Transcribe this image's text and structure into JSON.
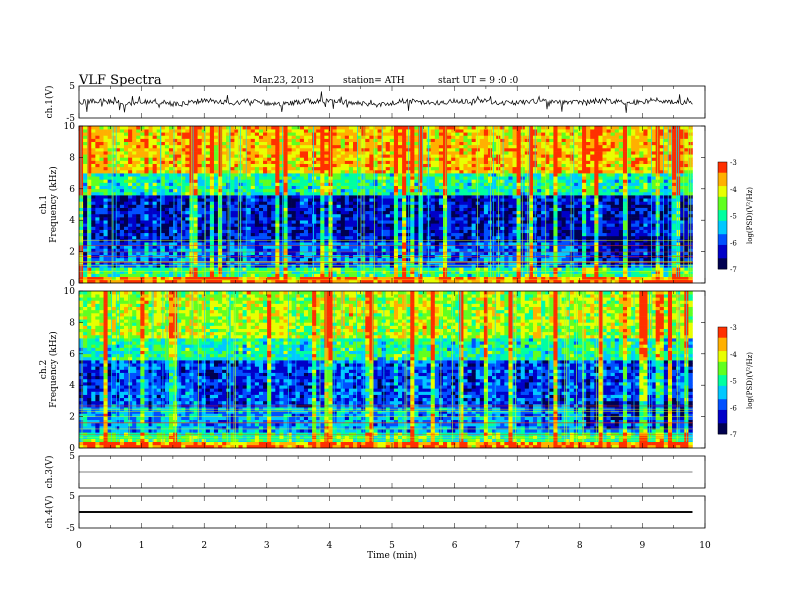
{
  "header": {
    "title": "VLF  Spectra",
    "date": "Mar.23, 2013",
    "station": "station= ATH",
    "start": "start  UT  =    9  :0  :0"
  },
  "chart_data": [
    {
      "type": "line",
      "panel": "ch1-waveform",
      "ylabel": "ch.1(V)",
      "ylim": [
        -5,
        5
      ],
      "yticks": [
        "5",
        "-5"
      ],
      "x": [
        0,
        0.4,
        0.8,
        1.2,
        1.6,
        2.0,
        2.4,
        2.8,
        3.2,
        3.6,
        4.0,
        4.4,
        4.8,
        5.2,
        5.6,
        6.0,
        6.4,
        6.8,
        7.2,
        7.6,
        8.0,
        8.4,
        8.8,
        9.2,
        9.6,
        9.8
      ],
      "y": [
        0,
        0.3,
        -0.4,
        0.2,
        -0.8,
        0.5,
        -0.3,
        0.4,
        -0.9,
        0.2,
        0.3,
        -0.2,
        -1.1,
        0.4,
        -0.3,
        0.2,
        0.5,
        -0.4,
        0.1,
        0.3,
        -0.2,
        0.4,
        -0.3,
        0.6,
        -0.4,
        0
      ]
    },
    {
      "type": "heatmap",
      "panel": "ch1-spectrogram",
      "ylabel": "ch.1\nFrequency  (kHz)",
      "ylim": [
        0,
        10
      ],
      "yticks": [
        "0",
        "2",
        "4",
        "6",
        "8",
        "10"
      ],
      "colorbar": {
        "label": "log(PSD)(V²/Hz)",
        "range": [
          -7,
          -3
        ],
        "ticks": [
          "-3",
          "-4",
          "-5",
          "-6",
          "-7"
        ]
      },
      "colormap": [
        "#000050",
        "#0000c8",
        "#0050ff",
        "#00c8ff",
        "#00ffa0",
        "#60ff20",
        "#e8ff00",
        "#ffb000",
        "#ff3000",
        "#ffffff"
      ],
      "bands": [
        {
          "fmin": 0,
          "fmax": 0.3,
          "log_psd": -3.5
        },
        {
          "fmin": 0.3,
          "fmax": 1.0,
          "log_psd": -4.8
        },
        {
          "fmin": 1.0,
          "fmax": 2.5,
          "log_psd": -5.8
        },
        {
          "fmin": 2.5,
          "fmax": 5.5,
          "log_psd": -6.3
        },
        {
          "fmin": 5.5,
          "fmax": 7.0,
          "log_psd": -5.0
        },
        {
          "fmin": 7.0,
          "fmax": 10.0,
          "log_psd": -3.8
        }
      ]
    },
    {
      "type": "heatmap",
      "panel": "ch2-spectrogram",
      "ylabel": "ch.2\nFrequency  (kHz)",
      "ylim": [
        0,
        10
      ],
      "yticks": [
        "0",
        "2",
        "4",
        "6",
        "8",
        "10"
      ],
      "colorbar": {
        "label": "log(PSD)(V²/Hz)",
        "range": [
          -7,
          -3
        ],
        "ticks": [
          "-3",
          "-4",
          "-5",
          "-6",
          "-7"
        ]
      },
      "bands": [
        {
          "fmin": 0,
          "fmax": 0.3,
          "log_psd": -3.5
        },
        {
          "fmin": 0.3,
          "fmax": 1.0,
          "log_psd": -4.8
        },
        {
          "fmin": 1.0,
          "fmax": 2.5,
          "log_psd": -5.6
        },
        {
          "fmin": 2.5,
          "fmax": 5.5,
          "log_psd": -6.0
        },
        {
          "fmin": 5.5,
          "fmax": 7.0,
          "log_psd": -5.0
        },
        {
          "fmin": 7.0,
          "fmax": 10.0,
          "log_psd": -4.3
        }
      ]
    },
    {
      "type": "line",
      "panel": "ch3-waveform",
      "ylabel": "ch.3(V)",
      "ylim": [
        -5,
        5
      ],
      "yticks": [
        "5"
      ],
      "x": [
        0,
        9.8
      ],
      "y": [
        0,
        0
      ]
    },
    {
      "type": "line",
      "panel": "ch4-waveform",
      "ylabel": "ch.4(V)",
      "ylim": [
        -5,
        5
      ],
      "yticks": [
        "5",
        "-5"
      ],
      "x": [
        0,
        9.8
      ],
      "y": [
        0,
        0
      ]
    }
  ],
  "xaxis": {
    "label": "Time  (min)",
    "ticks": [
      "0",
      "1",
      "2",
      "3",
      "4",
      "5",
      "6",
      "7",
      "8",
      "9",
      "10"
    ],
    "range": [
      0,
      10
    ],
    "data_end": 9.8
  }
}
